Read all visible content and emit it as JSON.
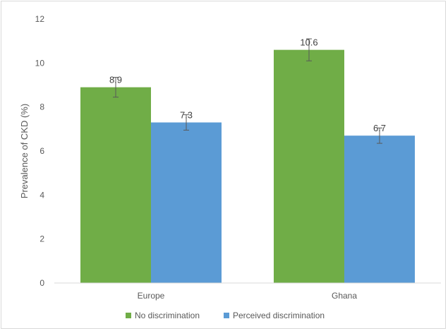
{
  "chart_data": {
    "type": "bar",
    "categories": [
      "Europe",
      "Ghana"
    ],
    "series": [
      {
        "name": "No discrimination",
        "values": [
          8.9,
          10.6
        ],
        "error": [
          0.45,
          0.5
        ],
        "color": "#70ad47"
      },
      {
        "name": "Perceived discrimination",
        "values": [
          7.3,
          6.7
        ],
        "error": [
          0.35,
          0.35
        ],
        "color": "#5b9bd5"
      }
    ],
    "data_labels": [
      [
        "8.9",
        "10.6"
      ],
      [
        "7.3",
        "6.7"
      ]
    ],
    "ylabel": "Prevalence of CKD (%)",
    "xlabel": "",
    "ylim": [
      0,
      12
    ],
    "yticks": [
      0,
      2,
      4,
      6,
      8,
      10,
      12
    ],
    "grid": false,
    "legend_position": "bottom"
  }
}
